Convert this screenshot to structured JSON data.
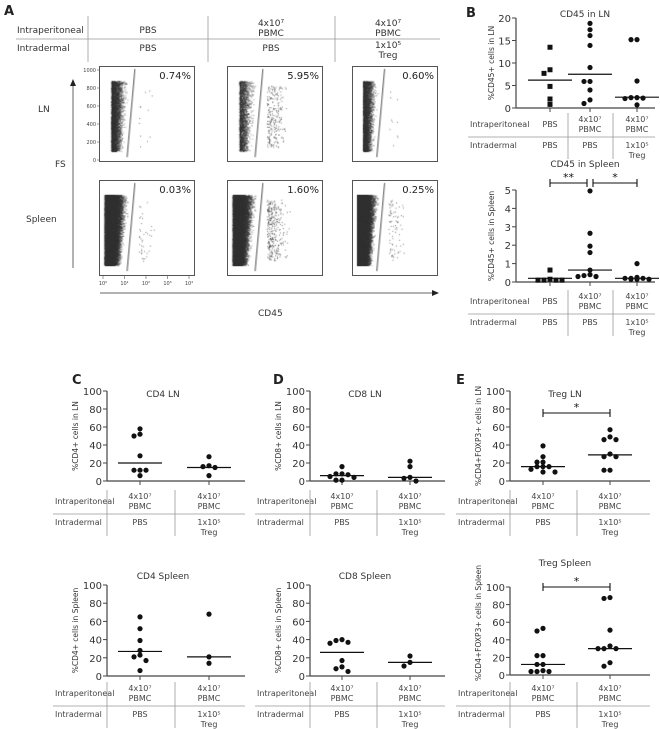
{
  "panel_labels": [
    "A",
    "B",
    "C",
    "D",
    "E"
  ],
  "panel_a": {
    "header_rows": [
      {
        "label": "Intraperitoneal",
        "cells": [
          [
            "PBS"
          ],
          [
            "4x10⁷",
            "PBMC"
          ],
          [
            "4x10⁷",
            "PBMC"
          ]
        ]
      },
      {
        "label": "Intradermal",
        "cells": [
          [
            "PBS"
          ],
          [
            "PBS"
          ],
          [
            "1x10⁵",
            "Treg"
          ]
        ]
      }
    ],
    "row_labels": [
      "LN",
      "Spleen"
    ],
    "y_axis_label": "FS",
    "x_axis_label": "CD45",
    "percentages": [
      [
        "0.74%",
        "5.95%",
        "0.60%"
      ],
      [
        "0.03%",
        "1.60%",
        "0.25%"
      ]
    ],
    "fs_ticks": [
      "0",
      "200",
      "400",
      "600",
      "800",
      "1000"
    ],
    "cd45_ticks": [
      "10⁰",
      "10¹",
      "10²",
      "10³",
      "10⁴"
    ]
  },
  "chart_data": [
    {
      "type": "scatter",
      "panel": "B",
      "title": "CD45 in LN",
      "ylabel": "%CD45+ cells in  LN",
      "ylim": [
        0,
        20
      ],
      "yticks": [
        0,
        5,
        10,
        15,
        20
      ],
      "marker": [
        "square",
        "circle",
        "circle"
      ],
      "groups": [
        {
          "ip": [
            "PBS"
          ],
          "id": [
            "PBS"
          ],
          "values": [
            13.5,
            8.5,
            7.7,
            4.8,
            2.0,
            0.8
          ],
          "median": 6.2
        },
        {
          "ip": [
            "4x10⁷",
            "PBMC"
          ],
          "id": [
            "PBS"
          ],
          "values": [
            18.8,
            17.4,
            16.1,
            13.9,
            9.0,
            5.9,
            5.9,
            4.0,
            1.8,
            1.0
          ],
          "median": 7.5
        },
        {
          "ip": [
            "4x10⁷",
            "PBMC"
          ],
          "id": [
            "1x10⁵",
            "Treg"
          ],
          "values": [
            15.2,
            15.2,
            6.0,
            2.3,
            2.1,
            2.2,
            2.3,
            0.7
          ],
          "median": 2.4
        }
      ],
      "row_labels": [
        "Intraperitoneal",
        "Intradermal"
      ],
      "significance": []
    },
    {
      "type": "scatter",
      "panel": "B",
      "title": "CD45 in Spleen",
      "ylabel": "%CD45+ cells in  Spleen",
      "ylim": [
        0,
        5
      ],
      "yticks": [
        0,
        1,
        2,
        3,
        4,
        5
      ],
      "marker": [
        "square",
        "circle",
        "circle"
      ],
      "groups": [
        {
          "ip": [
            "PBS"
          ],
          "id": [
            "PBS"
          ],
          "values": [
            0.65,
            0.15,
            0.1,
            0.1,
            0.1,
            0.1
          ],
          "median": 0.2
        },
        {
          "ip": [
            "4x10⁷",
            "PBMC"
          ],
          "id": [
            "PBS"
          ],
          "values": [
            4.95,
            2.65,
            1.95,
            1.6,
            0.65,
            0.35,
            0.3,
            0.3,
            0.4
          ],
          "median": 0.65
        },
        {
          "ip": [
            "4x10⁷",
            "PBMC"
          ],
          "id": [
            "1x10⁵",
            "Treg"
          ],
          "values": [
            1.0,
            0.25,
            0.2,
            0.15,
            0.15,
            0.15,
            0.2,
            0.2
          ],
          "median": 0.2
        }
      ],
      "row_labels": [
        "Intraperitoneal",
        "Intradermal"
      ],
      "significance": [
        {
          "from": 0,
          "to": 1,
          "label": "**"
        },
        {
          "from": 1,
          "to": 2,
          "label": "*"
        }
      ]
    },
    {
      "type": "scatter",
      "panel": "C",
      "title": "CD4 LN",
      "ylabel": "%CD4+ cells in  LN",
      "ylim": [
        0,
        100
      ],
      "yticks": [
        0,
        20,
        40,
        60,
        80,
        100
      ],
      "marker": [
        "circle",
        "circle"
      ],
      "groups": [
        {
          "ip": [
            "4x10⁷",
            "PBMC"
          ],
          "id": [
            "PBS"
          ],
          "values": [
            58,
            52,
            50,
            28,
            12,
            12,
            12,
            6
          ],
          "median": 20
        },
        {
          "ip": [
            "4x10⁷",
            "PBMC"
          ],
          "id": [
            "1x10⁵",
            "Treg"
          ],
          "values": [
            27,
            15,
            16,
            17,
            6
          ],
          "median": 15
        }
      ],
      "row_labels": [
        "Intraperitoneal",
        "Intradermal"
      ],
      "significance": []
    },
    {
      "type": "scatter",
      "panel": "D",
      "title": "CD8 LN",
      "ylabel": "%CD8+ cells in  LN",
      "ylim": [
        0,
        100
      ],
      "yticks": [
        0,
        20,
        40,
        60,
        80,
        100
      ],
      "marker": [
        "circle",
        "circle"
      ],
      "groups": [
        {
          "ip": [
            "4x10⁷",
            "PBMC"
          ],
          "id": [
            "PBS"
          ],
          "values": [
            16,
            8,
            8,
            7,
            4,
            5,
            1,
            1
          ],
          "median": 6
        },
        {
          "ip": [
            "4x10⁷",
            "PBMC"
          ],
          "id": [
            "1x10⁵",
            "Treg"
          ],
          "values": [
            22,
            16,
            4,
            3,
            0
          ],
          "median": 4
        }
      ],
      "row_labels": [
        "Intraperitoneal",
        "Intradermal"
      ],
      "significance": []
    },
    {
      "type": "scatter",
      "panel": "C",
      "title": "CD4 Spleen",
      "ylabel": "%CD4+ cells in  Spleen",
      "ylim": [
        0,
        100
      ],
      "yticks": [
        0,
        20,
        40,
        60,
        80,
        100
      ],
      "marker": [
        "circle",
        "circle"
      ],
      "groups": [
        {
          "ip": [
            "4x10⁷",
            "PBMC"
          ],
          "id": [
            "PBS"
          ],
          "values": [
            65,
            52,
            39,
            28,
            23,
            21,
            17,
            6
          ],
          "median": 27
        },
        {
          "ip": [
            "4x10⁷",
            "PBMC"
          ],
          "id": [
            "1x10⁵",
            "Treg"
          ],
          "values": [
            68,
            21,
            14
          ],
          "median": 21
        }
      ],
      "row_labels": [
        "Intraperitoneal",
        "Intradermal"
      ],
      "significance": []
    },
    {
      "type": "scatter",
      "panel": "D",
      "title": "CD8 Spleen",
      "ylabel": "%CD8+ cells in  Spleen",
      "ylim": [
        0,
        100
      ],
      "yticks": [
        0,
        20,
        40,
        60,
        80,
        100
      ],
      "marker": [
        "circle",
        "circle"
      ],
      "groups": [
        {
          "ip": [
            "4x10⁷",
            "PBMC"
          ],
          "id": [
            "PBS"
          ],
          "values": [
            39,
            36,
            37,
            40,
            17,
            10,
            8,
            5
          ],
          "median": 26
        },
        {
          "ip": [
            "4x10⁷",
            "PBMC"
          ],
          "id": [
            "1x10⁵",
            "Treg"
          ],
          "values": [
            22,
            11,
            15
          ],
          "median": 15
        }
      ],
      "row_labels": [
        "Intraperitoneal",
        "Intradermal"
      ],
      "significance": []
    },
    {
      "type": "scatter",
      "panel": "E",
      "title": "Treg LN",
      "ylabel": "%CD4+FOXP3+ cells in  LN",
      "ylim": [
        0,
        100
      ],
      "yticks": [
        0,
        20,
        40,
        60,
        80,
        100
      ],
      "marker": [
        "circle",
        "circle"
      ],
      "groups": [
        {
          "ip": [
            "4x10⁷",
            "PBMC"
          ],
          "id": [
            "PBS"
          ],
          "values": [
            39,
            27,
            21,
            21,
            16,
            16,
            13,
            10,
            10,
            16
          ],
          "median": 16
        },
        {
          "ip": [
            "4x10⁷",
            "PBMC"
          ],
          "id": [
            "1x10⁵",
            "Treg"
          ],
          "values": [
            57,
            49,
            46,
            46,
            30,
            27,
            27,
            12,
            12
          ],
          "median": 29
        }
      ],
      "row_labels": [
        "Intraperitoneal",
        "Intradermal"
      ],
      "significance": [
        {
          "from": 0,
          "to": 1,
          "label": "*"
        }
      ]
    },
    {
      "type": "scatter",
      "panel": "E",
      "title": "Treg Spleen",
      "ylabel": "%CD4+FOXP3+ cells in  Spleen",
      "ylim": [
        0,
        100
      ],
      "yticks": [
        0,
        20,
        40,
        60,
        80,
        100
      ],
      "marker": [
        "circle",
        "circle"
      ],
      "groups": [
        {
          "ip": [
            "4x10⁷",
            "PBMC"
          ],
          "id": [
            "PBS"
          ],
          "values": [
            53,
            50,
            22,
            22,
            12,
            12,
            4,
            4,
            4,
            5
          ],
          "median": 12
        },
        {
          "ip": [
            "4x10⁷",
            "PBMC"
          ],
          "id": [
            "1x10⁵",
            "Treg"
          ],
          "values": [
            88,
            87,
            51,
            33,
            30,
            30,
            30,
            14,
            10
          ],
          "median": 30
        }
      ],
      "row_labels": [
        "Intraperitoneal",
        "Intradermal"
      ],
      "significance": [
        {
          "from": 0,
          "to": 1,
          "label": "*"
        }
      ]
    }
  ],
  "colors": {
    "ink": "#111111",
    "axis": "#444444",
    "table_line": "#999999",
    "text": "#333333"
  }
}
